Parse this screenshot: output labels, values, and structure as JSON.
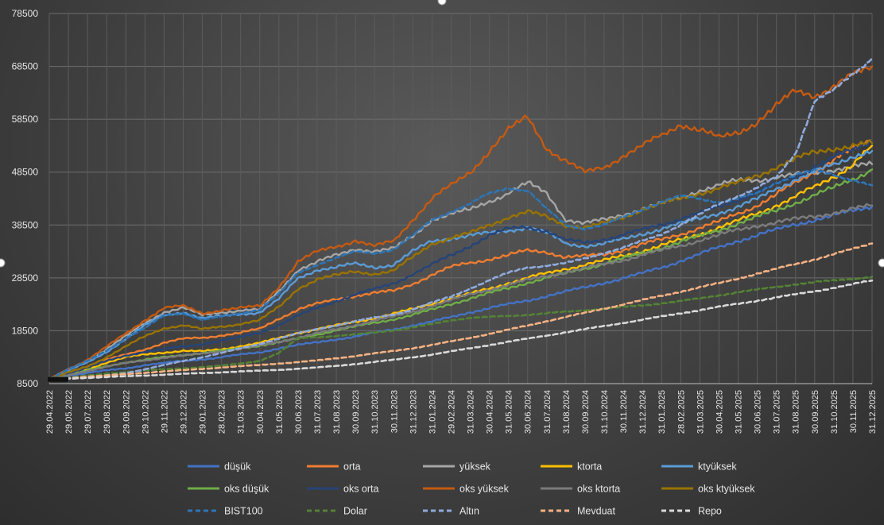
{
  "chart_data": {
    "type": "line",
    "title": "",
    "xlabel": "",
    "ylabel": "",
    "ylim": [
      8500,
      78500
    ],
    "yticks": [
      8500,
      18500,
      28500,
      38500,
      48500,
      58500,
      68500,
      78500
    ],
    "xticks": [
      "29.04.2022",
      "29.05.2022",
      "29.07.2022",
      "29.08.2022",
      "29.09.2022",
      "29.10.2022",
      "29.11.2022",
      "29.12.2022",
      "29.01.2023",
      "28.02.2023",
      "31.03.2023",
      "30.04.2023",
      "31.05.2023",
      "30.06.2023",
      "31.07.2023",
      "31.08.2023",
      "30.09.2023",
      "31.10.2023",
      "30.11.2023",
      "31.12.2023",
      "31.01.2024",
      "29.02.2024",
      "31.03.2024",
      "30.04.2024",
      "31.05.2024",
      "30.06.2024",
      "31.07.2024",
      "31.08.2024",
      "30.09.2024",
      "31.10.2024",
      "30.11.2024",
      "31.12.2024",
      "31.01.2025",
      "28.02.2025",
      "31.03.2025",
      "30.04.2025",
      "31.05.2025",
      "30.06.2025",
      "31.07.2025",
      "31.08.2025",
      "30.09.2025",
      "31.10.2025",
      "30.11.2025",
      "31.12.2025"
    ],
    "grid": true,
    "legend_position": "bottom",
    "series": [
      {
        "name": "düşük",
        "color": "#4472C4",
        "dash": false,
        "values": [
          9300,
          10000,
          10500,
          11000,
          11400,
          12000,
          12400,
          12800,
          13100,
          13500,
          14000,
          14400,
          15200,
          15800,
          16300,
          16900,
          17400,
          18100,
          18800,
          19500,
          20200,
          21100,
          22000,
          22800,
          23500,
          24200,
          25100,
          25900,
          26700,
          27600,
          28400,
          29400,
          30500,
          31700,
          33000,
          34300,
          35500,
          36600,
          37600,
          38600,
          39500,
          40300,
          41200,
          42000
        ]
      },
      {
        "name": "orta",
        "color": "#ED7D31",
        "dash": false,
        "values": [
          9300,
          10700,
          11800,
          13000,
          14000,
          15000,
          16200,
          17000,
          17200,
          17600,
          18100,
          18900,
          20800,
          22500,
          23600,
          24500,
          25100,
          25600,
          26100,
          27400,
          29000,
          30600,
          31400,
          32000,
          32800,
          33700,
          33400,
          32400,
          32600,
          33000,
          33800,
          34800,
          35800,
          36800,
          37900,
          39200,
          40700,
          42200,
          44300,
          46500,
          48600,
          50900,
          52900,
          54500
        ]
      },
      {
        "name": "yüksek",
        "color": "#A5A5A5",
        "dash": false,
        "values": [
          9300,
          11200,
          12800,
          15000,
          17500,
          20000,
          22000,
          22800,
          21500,
          22000,
          22300,
          22500,
          26000,
          30000,
          31500,
          32800,
          34000,
          33500,
          34000,
          36500,
          39500,
          40500,
          41500,
          43000,
          44500,
          46500,
          44500,
          39500,
          38800,
          39500,
          40500,
          41500,
          42500,
          43800,
          45000,
          46000,
          47000,
          47000,
          47500,
          48000,
          48500,
          49000,
          49500,
          50000
        ]
      },
      {
        "name": "ktorta",
        "color": "#FFC000",
        "dash": false,
        "values": [
          9300,
          10200,
          11200,
          12500,
          13500,
          14000,
          14400,
          14700,
          14600,
          15000,
          15600,
          16200,
          17100,
          18100,
          18800,
          19500,
          20200,
          20900,
          21700,
          22600,
          23600,
          24600,
          25500,
          26500,
          27500,
          28500,
          29400,
          30200,
          31000,
          31800,
          32700,
          33600,
          34600,
          35700,
          36800,
          38000,
          39300,
          40700,
          42200,
          43900,
          45700,
          47600,
          50000,
          53500
        ]
      },
      {
        "name": "ktyüksek",
        "color": "#5B9BD5",
        "dash": false,
        "values": [
          9300,
          11000,
          12500,
          14500,
          17000,
          19500,
          21500,
          22000,
          20800,
          21300,
          21700,
          21900,
          24500,
          28500,
          30000,
          30500,
          31200,
          30500,
          31000,
          33500,
          35500,
          36000,
          36500,
          37000,
          37500,
          38000,
          37000,
          35000,
          34500,
          35000,
          35800,
          36800,
          37800,
          38800,
          39800,
          40800,
          41800,
          43500,
          45500,
          47000,
          48500,
          50000,
          51500,
          52500
        ]
      },
      {
        "name": "oks düşük",
        "color": "#70AD47",
        "dash": false,
        "values": [
          9300,
          10200,
          11000,
          11800,
          12500,
          13000,
          13500,
          13900,
          14300,
          14700,
          15200,
          15700,
          16300,
          17000,
          17800,
          18600,
          19300,
          20000,
          20700,
          21500,
          22500,
          23600,
          24600,
          25600,
          26600,
          27600,
          28500,
          29400,
          30300,
          31200,
          32200,
          33200,
          34200,
          35300,
          36400,
          37600,
          38800,
          40000,
          41300,
          42700,
          44100,
          45600,
          47200,
          49000
        ]
      },
      {
        "name": "oks orta",
        "color": "#264478",
        "dash": false,
        "values": [
          9300,
          10500,
          11500,
          12800,
          13800,
          14500,
          15000,
          15500,
          16000,
          16600,
          17300,
          18200,
          19600,
          21300,
          22900,
          24100,
          25300,
          26400,
          27500,
          29200,
          31000,
          32800,
          34600,
          36500,
          37800,
          38200,
          37300,
          35600,
          35200,
          35800,
          36600,
          37600,
          38600,
          39700,
          40800,
          42000,
          43300,
          44700,
          46200,
          47800,
          49500,
          51200,
          52800,
          54500
        ]
      },
      {
        "name": "oks yüksek",
        "color": "#C55A11",
        "dash": false,
        "values": [
          9300,
          11300,
          13000,
          15500,
          18000,
          20500,
          22800,
          23200,
          21800,
          22400,
          22800,
          23200,
          26800,
          31500,
          33500,
          34500,
          35500,
          34500,
          35500,
          39500,
          43500,
          46000,
          48500,
          52500,
          56500,
          59000,
          53000,
          50500,
          48500,
          49500,
          51500,
          53500,
          55500,
          57500,
          56500,
          55000,
          56000,
          58000,
          61000,
          64000,
          63000,
          64500,
          67000,
          68500
        ]
      },
      {
        "name": "oks ktorta",
        "color": "#7B7B7B",
        "dash": false,
        "values": [
          9300,
          10100,
          10900,
          11700,
          12400,
          12900,
          13400,
          13800,
          14200,
          14600,
          15100,
          15700,
          16400,
          17200,
          18000,
          18800,
          19600,
          20400,
          21200,
          22100,
          23200,
          24300,
          25400,
          26300,
          27200,
          28100,
          28900,
          29600,
          30300,
          31100,
          31900,
          32800,
          33700,
          34600,
          35600,
          36600,
          37600,
          38400,
          39000,
          39600,
          40200,
          40800,
          41500,
          42200
        ]
      },
      {
        "name": "oks ktyüksek",
        "color": "#997300",
        "dash": false,
        "values": [
          9300,
          10600,
          11800,
          13500,
          15500,
          17500,
          19000,
          19500,
          18800,
          19300,
          19800,
          20500,
          23000,
          26500,
          28200,
          29000,
          29800,
          29200,
          29800,
          32500,
          35000,
          36000,
          37000,
          38500,
          40000,
          41000,
          40000,
          38500,
          38000,
          38800,
          40000,
          41500,
          42500,
          43500,
          44500,
          45500,
          46500,
          47800,
          49500,
          51000,
          52200,
          53000,
          53500,
          54000
        ]
      },
      {
        "name": "BIST100",
        "color": "#2E75B6",
        "dash": true,
        "values": [
          9300,
          11200,
          12800,
          14800,
          17000,
          19000,
          21500,
          21800,
          20500,
          21200,
          21800,
          22500,
          25500,
          29500,
          31000,
          32200,
          33500,
          33200,
          33800,
          36500,
          39500,
          41000,
          42500,
          44500,
          45500,
          45000,
          41500,
          38500,
          37800,
          38500,
          40000,
          41500,
          42800,
          44000,
          43500,
          42800,
          43500,
          44500,
          46500,
          48000,
          48800,
          48000,
          47000,
          46000
        ]
      },
      {
        "name": "Dolar",
        "color": "#548235",
        "dash": true,
        "values": [
          9300,
          9600,
          10000,
          10400,
          10700,
          11000,
          11200,
          11400,
          11600,
          11900,
          12300,
          12800,
          14300,
          17100,
          17300,
          17500,
          17800,
          18200,
          18600,
          19100,
          19800,
          20500,
          20900,
          21100,
          21300,
          21500,
          21800,
          22100,
          22400,
          22700,
          23000,
          23300,
          23700,
          24100,
          24600,
          25200,
          25800,
          26300,
          26800,
          27300,
          27700,
          28000,
          28300,
          28700
        ]
      },
      {
        "name": "Altın",
        "color": "#8FAADC",
        "dash": true,
        "values": [
          9300,
          9500,
          9700,
          10000,
          10500,
          11200,
          12000,
          12800,
          13500,
          14300,
          15200,
          16000,
          17000,
          18000,
          18800,
          19500,
          20300,
          21000,
          21600,
          22500,
          23800,
          25000,
          26500,
          28000,
          29500,
          30500,
          30800,
          31300,
          32200,
          33200,
          34200,
          35500,
          36800,
          38500,
          40500,
          42500,
          44000,
          45500,
          47500,
          52000,
          62000,
          64000,
          67000,
          70000
        ]
      },
      {
        "name": "Mevduat",
        "color": "#F4B183",
        "dash": true,
        "values": [
          9300,
          9550,
          9800,
          10050,
          10300,
          10550,
          10800,
          11050,
          11300,
          11550,
          11800,
          12050,
          12300,
          12550,
          12900,
          13300,
          13700,
          14200,
          14700,
          15200,
          15800,
          16500,
          17200,
          17900,
          18700,
          19500,
          20300,
          21100,
          21900,
          22700,
          23500,
          24300,
          25100,
          25900,
          26700,
          27500,
          28400,
          29300,
          30200,
          31100,
          32000,
          33000,
          34000,
          35000
        ]
      },
      {
        "name": "Repo",
        "color": "#D9D9D9",
        "dash": true,
        "values": [
          9300,
          9450,
          9600,
          9750,
          9900,
          10050,
          10200,
          10350,
          10500,
          10650,
          10800,
          10950,
          11100,
          11300,
          11550,
          11850,
          12200,
          12600,
          13000,
          13500,
          14000,
          14600,
          15200,
          15800,
          16400,
          17000,
          17600,
          18200,
          18800,
          19400,
          20000,
          20600,
          21200,
          21800,
          22400,
          23000,
          23600,
          24200,
          24800,
          25400,
          26000,
          26600,
          27300,
          28000
        ]
      }
    ]
  }
}
